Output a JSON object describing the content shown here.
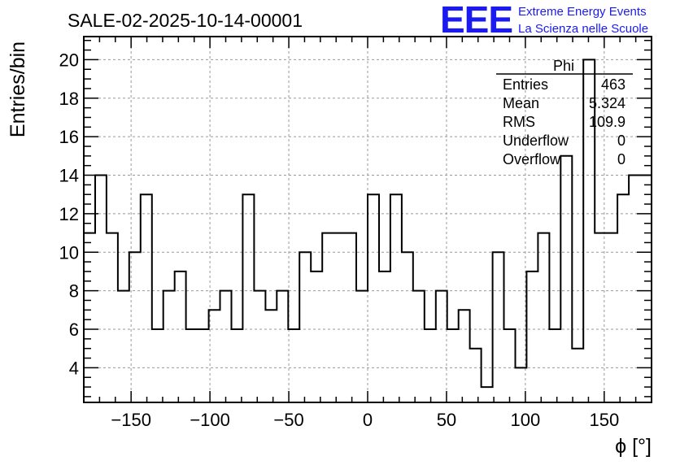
{
  "header": {
    "title": "SALE-02-2025-10-14-00001",
    "logo_text": "EEE",
    "logo_line1": "Extreme Energy Events",
    "logo_line2": "La Scienza nelle Scuole"
  },
  "stats_box": {
    "name": "Phi",
    "rows": [
      {
        "label": "Entries",
        "value": "463"
      },
      {
        "label": "Mean",
        "value": "5.324"
      },
      {
        "label": "RMS",
        "value": "109.9"
      },
      {
        "label": "Underflow",
        "value": "0"
      },
      {
        "label": "Overflow",
        "value": "0"
      }
    ]
  },
  "colors": {
    "line": "#000000",
    "grid": "#999999",
    "logo": "#1b1bf0"
  },
  "chart_data": {
    "type": "histogram-step",
    "title": "SALE-02-2025-10-14-00001",
    "xlabel": "ϕ [°]",
    "ylabel": "Entries/bin",
    "xlim": [
      -180,
      180
    ],
    "ylim": [
      2.2,
      21.2
    ],
    "bin_width": 7.2,
    "grid": true,
    "xticks": [
      -150,
      -100,
      -50,
      0,
      50,
      100,
      150
    ],
    "xtick_labels": [
      "−150",
      "−100",
      "−50",
      "0",
      "50",
      "100",
      "150"
    ],
    "yticks": [
      4,
      6,
      8,
      10,
      12,
      14,
      16,
      18,
      20
    ],
    "yticks_minor_step": 0.5,
    "xticks_minor_step": 10,
    "values": [
      11,
      14,
      11,
      8,
      10,
      13,
      6,
      8,
      9,
      6,
      6,
      7,
      8,
      6,
      13,
      8,
      7,
      8,
      6,
      10,
      9,
      11,
      11,
      11,
      8,
      13,
      9,
      13,
      10,
      8,
      6,
      8,
      6,
      7,
      5,
      3,
      10,
      6,
      4,
      9,
      11,
      6,
      15,
      5,
      20,
      11,
      11,
      13,
      14,
      14
    ]
  }
}
